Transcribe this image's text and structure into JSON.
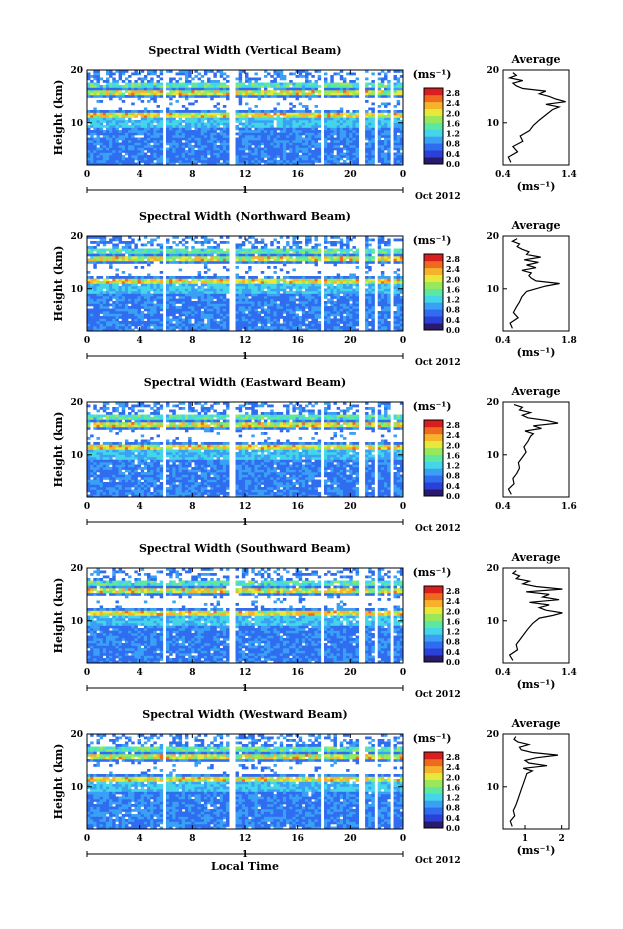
{
  "colors": {
    "colormap": [
      "#2a1a6e",
      "#2b3fd9",
      "#2f6cf0",
      "#3aa0f5",
      "#44d6e8",
      "#5ce8a0",
      "#9ae85a",
      "#e8e83a",
      "#f5b22a",
      "#ef6a1e",
      "#d81e1e"
    ],
    "gap": "#ffffff",
    "line": "#000000"
  },
  "chart_data": [
    {
      "type": "heatmap",
      "title": "Spectral Width (Vertical Beam)",
      "ylabel": "Height (km)",
      "xlabel": "",
      "xticks": [
        "0",
        "4",
        "8",
        "12",
        "16",
        "20",
        "0"
      ],
      "yticks": [
        "20",
        "10"
      ],
      "xlim": [
        0,
        24
      ],
      "ylim": [
        2,
        20
      ],
      "date_label": "1",
      "month_label": "Oct 2012",
      "data_gaps_hours": [
        [
          5.8,
          6.1
        ],
        [
          10.9,
          11.3
        ],
        [
          17.7,
          18.0
        ],
        [
          20.7,
          21.0
        ],
        [
          21.9,
          22.1
        ],
        [
          23.0,
          23.2
        ]
      ],
      "colorbar": {
        "unit": "(ms⁻¹)",
        "ticks": [
          "2.8",
          "2.4",
          "2.0",
          "1.6",
          "1.2",
          "0.8",
          "0.4",
          "0.0"
        ],
        "range": [
          0,
          3.0
        ]
      },
      "average_profile": {
        "title": "Average",
        "xlabel": "(ms⁻¹)",
        "xticks": [
          "0.4",
          "1.4"
        ],
        "xlim": [
          0.4,
          1.4
        ],
        "yticks": [
          "20",
          "10"
        ],
        "ylim": [
          2,
          20
        ],
        "height_km": [
          2.5,
          3.5,
          4.5,
          5.5,
          6.5,
          7.5,
          8.5,
          9.5,
          10.5,
          11.5,
          12.5,
          13.0,
          13.5,
          14.0,
          14.5,
          15.0,
          15.5,
          16.0,
          16.5,
          17.0,
          17.5,
          18.0,
          18.5,
          19.0,
          19.5
        ],
        "width_ms": [
          0.52,
          0.48,
          0.62,
          0.55,
          0.7,
          0.66,
          0.8,
          0.86,
          0.95,
          1.05,
          1.15,
          1.25,
          1.05,
          1.35,
          1.2,
          1.1,
          0.95,
          1.05,
          0.7,
          0.6,
          0.55,
          0.7,
          0.5,
          0.6,
          0.55
        ]
      },
      "seed": 11
    },
    {
      "type": "heatmap",
      "title": "Spectral Width (Northward Beam)",
      "ylabel": "Height (km)",
      "xlabel": "",
      "xticks": [
        "0",
        "4",
        "8",
        "12",
        "16",
        "20",
        "0"
      ],
      "yticks": [
        "20",
        "10"
      ],
      "xlim": [
        0,
        24
      ],
      "ylim": [
        2,
        20
      ],
      "date_label": "1",
      "month_label": "Oct 2012",
      "data_gaps_hours": [
        [
          5.8,
          6.1
        ],
        [
          10.9,
          11.3
        ],
        [
          17.7,
          18.0
        ],
        [
          20.7,
          21.0
        ],
        [
          21.9,
          22.1
        ],
        [
          23.0,
          23.2
        ]
      ],
      "colorbar": {
        "unit": "(ms⁻¹)",
        "ticks": [
          "2.8",
          "2.4",
          "2.0",
          "1.6",
          "1.2",
          "0.8",
          "0.4",
          "0.0"
        ],
        "range": [
          0,
          3.0
        ]
      },
      "average_profile": {
        "title": "Average",
        "xlabel": "(ms⁻¹)",
        "xticks": [
          "0.4",
          "1.8"
        ],
        "xlim": [
          0.4,
          1.8
        ],
        "yticks": [
          "20",
          "10"
        ],
        "ylim": [
          2,
          20
        ],
        "height_km": [
          2.5,
          3.5,
          4.5,
          5.5,
          6.5,
          7.5,
          8.5,
          9.5,
          10.5,
          11.0,
          11.5,
          12.0,
          12.5,
          13.0,
          13.5,
          14.0,
          14.5,
          15.0,
          15.5,
          16.0,
          16.5,
          17.0,
          17.5,
          18.0,
          18.5,
          19.0,
          19.5
        ],
        "width_ms": [
          0.6,
          0.55,
          0.72,
          0.62,
          0.68,
          0.75,
          0.8,
          0.9,
          1.3,
          1.6,
          1.1,
          1.0,
          0.95,
          1.0,
          0.8,
          1.1,
          0.9,
          1.15,
          0.85,
          1.2,
          0.9,
          0.95,
          0.8,
          0.7,
          0.75,
          0.6,
          0.7
        ]
      },
      "seed": 23
    },
    {
      "type": "heatmap",
      "title": "Spectral Width (Eastward Beam)",
      "ylabel": "Height (km)",
      "xlabel": "",
      "xticks": [
        "0",
        "4",
        "8",
        "12",
        "16",
        "20",
        "0"
      ],
      "yticks": [
        "20",
        "10"
      ],
      "xlim": [
        0,
        24
      ],
      "ylim": [
        2,
        20
      ],
      "date_label": "1",
      "month_label": "Oct 2012",
      "data_gaps_hours": [
        [
          5.8,
          6.1
        ],
        [
          10.9,
          11.3
        ],
        [
          17.7,
          18.0
        ],
        [
          20.7,
          21.0
        ],
        [
          21.9,
          22.1
        ],
        [
          23.0,
          23.2
        ]
      ],
      "colorbar": {
        "unit": "(ms⁻¹)",
        "ticks": [
          "2.8",
          "2.4",
          "2.0",
          "1.6",
          "1.2",
          "0.8",
          "0.4",
          "0.0"
        ],
        "range": [
          0,
          3.0
        ]
      },
      "average_profile": {
        "title": "Average",
        "xlabel": "",
        "xticks": [
          "0.4",
          "1.6"
        ],
        "xlim": [
          0.4,
          1.6
        ],
        "yticks": [
          "20",
          "10"
        ],
        "ylim": [
          2,
          20
        ],
        "height_km": [
          2.5,
          3.5,
          4.5,
          5.5,
          6.5,
          7.5,
          8.5,
          9.5,
          10.5,
          11.5,
          12.5,
          13.5,
          14.0,
          14.5,
          15.0,
          15.5,
          16.0,
          16.5,
          17.0,
          17.5,
          18.0,
          18.5,
          19.0,
          19.5
        ],
        "width_ms": [
          0.55,
          0.5,
          0.6,
          0.58,
          0.65,
          0.7,
          0.68,
          0.75,
          0.82,
          0.78,
          0.85,
          0.9,
          0.95,
          0.8,
          1.1,
          0.95,
          1.4,
          1.2,
          0.85,
          0.75,
          0.9,
          0.7,
          0.75,
          0.6
        ]
      },
      "seed": 37
    },
    {
      "type": "heatmap",
      "title": "Spectral Width (Southward Beam)",
      "ylabel": "Height (km)",
      "xlabel": "",
      "xticks": [
        "0",
        "4",
        "8",
        "12",
        "16",
        "20",
        "0"
      ],
      "yticks": [
        "20",
        "10"
      ],
      "xlim": [
        0,
        24
      ],
      "ylim": [
        2,
        20
      ],
      "date_label": "1",
      "month_label": "Oct 2012",
      "data_gaps_hours": [
        [
          5.8,
          6.1
        ],
        [
          10.9,
          11.3
        ],
        [
          17.7,
          18.0
        ],
        [
          20.7,
          21.0
        ],
        [
          21.9,
          22.1
        ],
        [
          23.0,
          23.2
        ]
      ],
      "colorbar": {
        "unit": "(ms⁻¹)",
        "ticks": [
          "2.8",
          "2.4",
          "2.0",
          "1.6",
          "1.2",
          "0.8",
          "0.4",
          "0.0"
        ],
        "range": [
          0,
          3.0
        ]
      },
      "average_profile": {
        "title": "Average",
        "xlabel": "(ms⁻¹)",
        "xticks": [
          "0.4",
          "1.4"
        ],
        "xlim": [
          0.4,
          1.4
        ],
        "yticks": [
          "20",
          "10"
        ],
        "ylim": [
          2,
          20
        ],
        "height_km": [
          2.5,
          3.5,
          4.5,
          5.5,
          6.5,
          7.5,
          8.5,
          9.5,
          10.5,
          11.0,
          11.5,
          12.0,
          12.5,
          13.0,
          13.5,
          14.0,
          14.5,
          15.0,
          15.5,
          16.0,
          16.5,
          17.0,
          17.5,
          18.0,
          18.5,
          19.0,
          19.5
        ],
        "width_ms": [
          0.55,
          0.5,
          0.62,
          0.6,
          0.66,
          0.72,
          0.78,
          0.85,
          0.95,
          1.15,
          1.3,
          1.05,
          0.95,
          1.1,
          0.8,
          1.25,
          1.0,
          1.1,
          0.75,
          1.3,
          0.9,
          0.7,
          0.8,
          0.6,
          0.65,
          0.55,
          0.6
        ]
      },
      "seed": 53
    },
    {
      "type": "heatmap",
      "title": "Spectral Width (Westward Beam)",
      "ylabel": "Height (km)",
      "xlabel": "Local Time",
      "xticks": [
        "0",
        "4",
        "8",
        "12",
        "16",
        "20",
        "0"
      ],
      "yticks": [
        "20",
        "10"
      ],
      "xlim": [
        0,
        24
      ],
      "ylim": [
        2,
        20
      ],
      "date_label": "1",
      "month_label": "Oct 2012",
      "data_gaps_hours": [
        [
          5.8,
          6.1
        ],
        [
          10.9,
          11.3
        ],
        [
          17.7,
          18.0
        ],
        [
          20.7,
          21.0
        ],
        [
          21.9,
          22.1
        ],
        [
          23.0,
          23.2
        ]
      ],
      "colorbar": {
        "unit": "(ms⁻¹)",
        "ticks": [
          "2.8",
          "2.4",
          "2.0",
          "1.6",
          "1.2",
          "0.8",
          "0.4",
          "0.0"
        ],
        "range": [
          0,
          3.0
        ]
      },
      "average_profile": {
        "title": "Average",
        "xlabel": "(ms⁻¹)",
        "xticks": [
          "1",
          "2"
        ],
        "xlim": [
          0.4,
          2.2
        ],
        "yticks": [
          "20",
          "10"
        ],
        "ylim": [
          2,
          20
        ],
        "height_km": [
          2.5,
          3.5,
          4.5,
          5.5,
          6.5,
          7.5,
          8.5,
          9.5,
          10.5,
          11.5,
          12.5,
          13.0,
          13.5,
          14.0,
          14.5,
          15.0,
          15.5,
          16.0,
          16.5,
          17.0,
          17.5,
          18.0,
          18.5,
          19.0,
          19.5
        ],
        "width_ms": [
          0.65,
          0.6,
          0.72,
          0.68,
          0.75,
          0.8,
          0.85,
          0.9,
          0.95,
          1.0,
          1.05,
          1.2,
          0.95,
          1.6,
          1.1,
          1.0,
          1.3,
          1.9,
          1.2,
          0.9,
          0.85,
          1.1,
          0.8,
          0.7,
          0.75
        ]
      },
      "seed": 71
    }
  ]
}
